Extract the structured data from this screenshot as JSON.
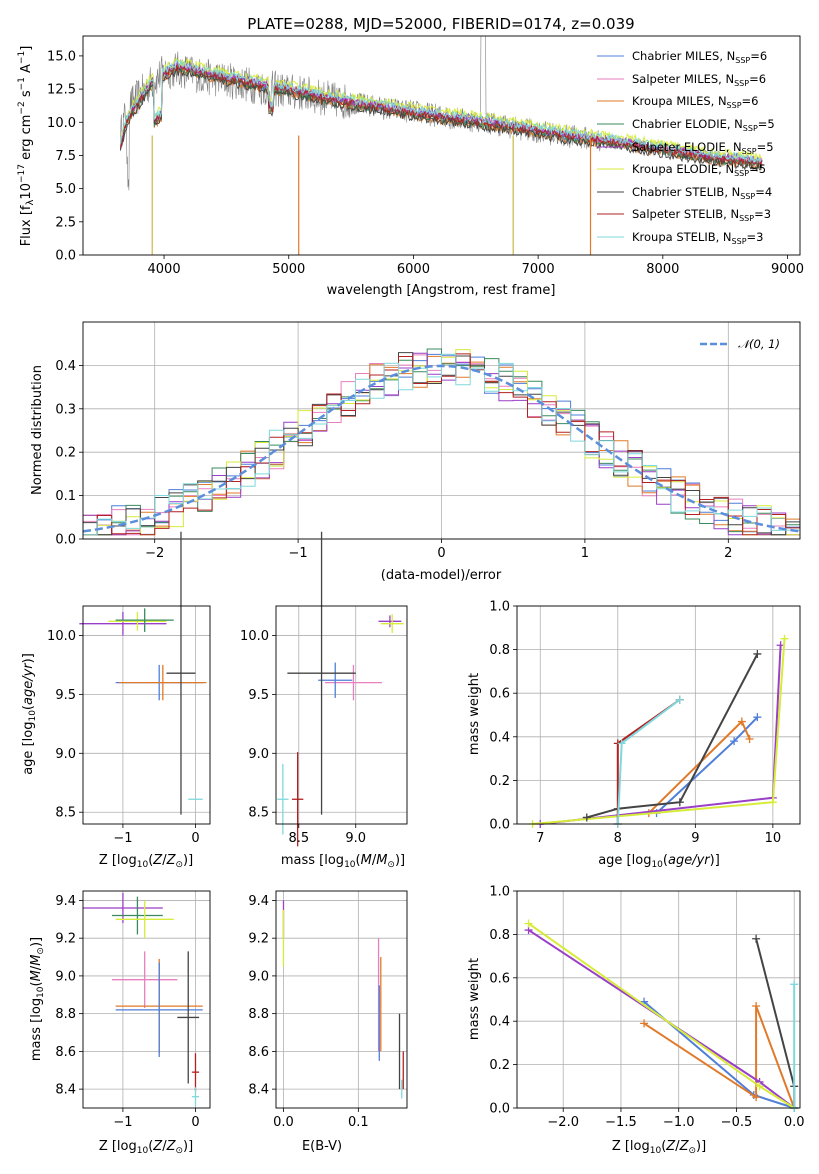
{
  "chart_data": [
    {
      "id": "spectrum",
      "type": "line",
      "title": "PLATE=0288, MJD=52000, FIBERID=0174, z=0.039",
      "xlabel": "wavelength [Angstrom, rest frame]",
      "ylabel": "Flux [f_λ 10^-17 erg cm^-2 s^-1 A^-1]",
      "xlim": [
        3350,
        9100
      ],
      "ylim": [
        0,
        16.5
      ],
      "xticks": [
        4000,
        5000,
        6000,
        7000,
        8000,
        9000
      ],
      "yticks": [
        0.0,
        2.5,
        5.0,
        7.5,
        10.0,
        12.5,
        15.0
      ],
      "grid": false,
      "legend_position": "top-right",
      "data_line": {
        "color": "#7f7f7f",
        "x": [
          3650,
          3700,
          3800,
          3900,
          4000,
          4100,
          4200,
          4300,
          4400,
          4500,
          4600,
          4700,
          4800,
          4900,
          5000,
          5100,
          5200,
          5300,
          5400,
          5500,
          5600,
          5800,
          6000,
          6200,
          6400,
          6600,
          6800,
          7000,
          7200,
          7400,
          7600,
          7800,
          8000,
          8200,
          8400,
          8600,
          8800
        ],
        "y": [
          9.0,
          11.0,
          12.0,
          13.0,
          13.8,
          14.0,
          13.8,
          13.5,
          13.3,
          13.2,
          13.0,
          12.8,
          12.6,
          12.5,
          12.3,
          12.2,
          12.0,
          11.8,
          11.6,
          11.5,
          11.3,
          11.0,
          10.8,
          10.5,
          10.2,
          10.0,
          9.6,
          9.3,
          9.0,
          8.8,
          8.5,
          8.2,
          8.0,
          7.7,
          7.4,
          7.2,
          7.0
        ]
      },
      "models_x": [
        3650,
        3700,
        3800,
        3900,
        4000,
        4100,
        4200,
        4300,
        4400,
        4500,
        4600,
        4700,
        4800,
        4900,
        5000,
        5100,
        5200,
        5300,
        5400,
        5500,
        5600,
        5800,
        6000,
        6200,
        6400,
        6600,
        6800,
        7000,
        7200,
        7400,
        7600,
        7800,
        8000,
        8200,
        8400,
        8600,
        8800
      ],
      "models_y": [
        8.0,
        10.0,
        11.5,
        12.8,
        13.5,
        14.0,
        13.9,
        13.6,
        13.4,
        13.2,
        13.0,
        12.8,
        12.6,
        12.4,
        12.3,
        12.1,
        11.9,
        11.7,
        11.5,
        11.3,
        11.2,
        10.9,
        10.6,
        10.3,
        10.1,
        9.8,
        9.5,
        9.2,
        8.9,
        8.6,
        8.4,
        8.1,
        7.8,
        7.5,
        7.2,
        7.0,
        6.8
      ],
      "series": [
        {
          "name": "Chabrier MILES, N_SSP=6",
          "color": "#4f7fd8",
          "offset": 0.1
        },
        {
          "name": "Salpeter MILES, N_SSP=6",
          "color": "#e87fbf",
          "offset": 0.2
        },
        {
          "name": "Kroupa MILES, N_SSP=6",
          "color": "#e07a2a",
          "offset": -0.1
        },
        {
          "name": "Chabrier ELODIE, N_SSP=5",
          "color": "#3a8a5f",
          "offset": 0.0
        },
        {
          "name": "Salpeter ELODIE, N_SSP=5",
          "color": "#9a3fc7",
          "offset": 0.3
        },
        {
          "name": "Kroupa ELODIE, N_SSP=5",
          "color": "#d7ec3a",
          "offset": 0.6
        },
        {
          "name": "Chabrier STELIB, N_SSP=4",
          "color": "#444444",
          "offset": -0.2
        },
        {
          "name": "Salpeter STELIB, N_SSP=3",
          "color": "#b32020",
          "offset": 0.15
        },
        {
          "name": "Kroupa STELIB, N_SSP=3",
          "color": "#7fd9dc",
          "offset": 0.4
        }
      ],
      "line_dips": [
        {
          "x": 3905,
          "color": "#c8b84a"
        },
        {
          "x": 5080,
          "color": "#e07a2a"
        },
        {
          "x": 6800,
          "color": "#c8b84a"
        },
        {
          "x": 7420,
          "color": "#e07a2a"
        }
      ]
    },
    {
      "id": "residuals",
      "type": "line",
      "xlabel": "(data-model)/error",
      "ylabel": "Normed distribution",
      "xlim": [
        -2.5,
        2.5
      ],
      "ylim": [
        0,
        0.5
      ],
      "xticks": [
        -2,
        -1,
        0,
        1,
        2
      ],
      "yticks": [
        0.0,
        0.1,
        0.2,
        0.3,
        0.4
      ],
      "grid": true,
      "legend_position": "top-right",
      "gaussian": {
        "name": "N(0,1)",
        "color": "#5b8fdc"
      },
      "series_colors": [
        "#4f7fd8",
        "#e87fbf",
        "#e07a2a",
        "#3a8a5f",
        "#9a3fc7",
        "#d7ec3a",
        "#444444",
        "#b32020",
        "#7fd9dc"
      ]
    },
    {
      "id": "age-vs-z",
      "type": "scatter",
      "xlabel": "Z [log10(Z/Z⊙)]",
      "ylabel": "age [log10(age/yr)]",
      "xlim": [
        -1.55,
        0.2
      ],
      "ylim": [
        8.4,
        10.25
      ],
      "xticks": [
        -1,
        0
      ],
      "yticks": [
        8.5,
        9.0,
        9.5,
        10.0
      ],
      "grid": true,
      "points": [
        {
          "x": -1.0,
          "y": 10.1,
          "xerr": 0.6,
          "yerr": 0.1,
          "color": "#9a3fc7"
        },
        {
          "x": -0.8,
          "y": 10.12,
          "xerr": 0.4,
          "yerr": 0.08,
          "color": "#d7ec3a"
        },
        {
          "x": -0.7,
          "y": 10.13,
          "xerr": 0.4,
          "yerr": 0.1,
          "color": "#3a8a5f"
        },
        {
          "x": -0.5,
          "y": 9.6,
          "xerr": 0.6,
          "yerr": 0.15,
          "color": "#4f7fd8"
        },
        {
          "x": -0.45,
          "y": 9.6,
          "xerr": 0.6,
          "yerr": 0.15,
          "color": "#e07a2a"
        },
        {
          "x": -0.2,
          "y": 9.68,
          "xerr": 0.2,
          "yerr": 1.2,
          "color": "#444444"
        },
        {
          "x": 0.0,
          "y": 8.61,
          "xerr": 0.1,
          "yerr": 0.0,
          "color": "#7fd9dc"
        }
      ]
    },
    {
      "id": "age-vs-mass",
      "type": "scatter",
      "xlabel": "mass [log10(M/M⊙)]",
      "ylabel": "",
      "xlim": [
        8.3,
        9.45
      ],
      "ylim": [
        8.4,
        10.25
      ],
      "xticks": [
        8.5,
        9.0
      ],
      "yticks": [
        8.5,
        9.0,
        9.5,
        10.0
      ],
      "grid": true,
      "points": [
        {
          "x": 9.3,
          "y": 10.12,
          "xerr": 0.1,
          "yerr": 0.05,
          "color": "#9a3fc7"
        },
        {
          "x": 9.32,
          "y": 10.1,
          "xerr": 0.1,
          "yerr": 0.08,
          "color": "#d7ec3a"
        },
        {
          "x": 8.98,
          "y": 9.6,
          "xerr": 0.25,
          "yerr": 0.15,
          "color": "#e87fbf"
        },
        {
          "x": 8.82,
          "y": 9.62,
          "xerr": 0.15,
          "yerr": 0.15,
          "color": "#4f7fd8"
        },
        {
          "x": 8.7,
          "y": 9.68,
          "xerr": 0.3,
          "yerr": 1.2,
          "color": "#444444"
        },
        {
          "x": 8.49,
          "y": 8.61,
          "xerr": 0.05,
          "yerr": 0.4,
          "color": "#b32020"
        },
        {
          "x": 8.36,
          "y": 8.61,
          "xerr": 0.05,
          "yerr": 0.3,
          "color": "#7fd9dc"
        }
      ]
    },
    {
      "id": "mass-weight-vs-age",
      "type": "line",
      "xlabel": "age [log10(age/yr)]",
      "ylabel": "mass weight",
      "xlim": [
        6.7,
        10.35
      ],
      "ylim": [
        0,
        1.0
      ],
      "xticks": [
        7,
        8,
        9,
        10
      ],
      "yticks": [
        0.0,
        0.2,
        0.4,
        0.6,
        0.8,
        1.0
      ],
      "grid": true,
      "series": [
        {
          "color": "#4f7fd8",
          "x": [
            8.5,
            9.5,
            9.8
          ],
          "y": [
            0.05,
            0.38,
            0.49
          ]
        },
        {
          "color": "#e07a2a",
          "x": [
            8.4,
            9.6,
            9.7
          ],
          "y": [
            0.05,
            0.47,
            0.39
          ]
        },
        {
          "color": "#9a3fc7",
          "x": [
            7.0,
            10.0,
            10.1
          ],
          "y": [
            0.0,
            0.12,
            0.82
          ]
        },
        {
          "color": "#d7ec3a",
          "x": [
            6.9,
            10.0,
            10.15
          ],
          "y": [
            0.0,
            0.1,
            0.85
          ]
        },
        {
          "color": "#444444",
          "x": [
            7.6,
            8.0,
            8.8,
            9.8
          ],
          "y": [
            0.03,
            0.07,
            0.1,
            0.78
          ]
        },
        {
          "color": "#b32020",
          "x": [
            8.0,
            8.0,
            8.8
          ],
          "y": [
            0.0,
            0.37,
            0.57
          ]
        },
        {
          "color": "#7fd9dc",
          "x": [
            8.0,
            8.05,
            8.8
          ],
          "y": [
            0.0,
            0.37,
            0.57
          ]
        }
      ]
    },
    {
      "id": "mass-vs-z",
      "type": "scatter",
      "xlabel": "Z [log10(Z/Z⊙)]",
      "ylabel": "mass [log10(M/M⊙)]",
      "xlim": [
        -1.55,
        0.2
      ],
      "ylim": [
        8.3,
        9.45
      ],
      "xticks": [
        -1,
        0
      ],
      "yticks": [
        8.4,
        8.6,
        8.8,
        9.0,
        9.2,
        9.4
      ],
      "grid": true,
      "points": [
        {
          "x": -1.0,
          "y": 9.36,
          "xerr": 0.55,
          "yerr": 0.08,
          "color": "#9a3fc7"
        },
        {
          "x": -0.8,
          "y": 9.32,
          "xerr": 0.35,
          "yerr": 0.1,
          "color": "#3a8a5f"
        },
        {
          "x": -0.7,
          "y": 9.3,
          "xerr": 0.4,
          "yerr": 0.1,
          "color": "#d7ec3a"
        },
        {
          "x": -0.7,
          "y": 8.98,
          "xerr": 0.45,
          "yerr": 0.15,
          "color": "#e87fbf"
        },
        {
          "x": -0.5,
          "y": 8.84,
          "xerr": 0.6,
          "yerr": 0.25,
          "color": "#e07a2a"
        },
        {
          "x": -0.5,
          "y": 8.82,
          "xerr": 0.6,
          "yerr": 0.25,
          "color": "#4f7fd8"
        },
        {
          "x": -0.1,
          "y": 8.78,
          "xerr": 0.15,
          "yerr": 0.35,
          "color": "#444444"
        },
        {
          "x": 0.0,
          "y": 8.49,
          "xerr": 0.05,
          "yerr": 0.1,
          "color": "#b32020"
        },
        {
          "x": 0.0,
          "y": 8.36,
          "xerr": 0.05,
          "yerr": 0.05,
          "color": "#7fd9dc"
        }
      ]
    },
    {
      "id": "mass-vs-ebv",
      "type": "scatter",
      "xlabel": "E(B-V)",
      "ylabel": "",
      "xlim": [
        -0.01,
        0.165
      ],
      "ylim": [
        8.3,
        9.45
      ],
      "xticks": [
        0.0,
        0.1
      ],
      "yticks": [
        8.4,
        8.6,
        8.8,
        9.0,
        9.2,
        9.4
      ],
      "grid": true,
      "points": [
        {
          "x": 0.0,
          "y": 9.3,
          "yerr": 0.1,
          "color": "#9a3fc7"
        },
        {
          "x": 0.0,
          "y": 9.2,
          "yerr": 0.15,
          "color": "#d7ec3a"
        },
        {
          "x": 0.127,
          "y": 8.9,
          "yerr": 0.3,
          "color": "#e87fbf"
        },
        {
          "x": 0.13,
          "y": 8.85,
          "yerr": 0.25,
          "color": "#e07a2a"
        },
        {
          "x": 0.128,
          "y": 8.75,
          "yerr": 0.2,
          "color": "#4f7fd8"
        },
        {
          "x": 0.155,
          "y": 8.6,
          "yerr": 0.2,
          "color": "#444444"
        },
        {
          "x": 0.16,
          "y": 8.5,
          "yerr": 0.1,
          "color": "#b32020"
        },
        {
          "x": 0.158,
          "y": 8.4,
          "yerr": 0.05,
          "color": "#7fd9dc"
        }
      ]
    },
    {
      "id": "mass-weight-vs-z",
      "type": "line",
      "xlabel": "Z [log10(Z/Z⊙)]",
      "ylabel": "mass weight",
      "xlim": [
        -2.4,
        0.05
      ],
      "ylim": [
        0,
        1.0
      ],
      "xticks": [
        -2.0,
        -1.5,
        -1.0,
        -0.5,
        0.0
      ],
      "yticks": [
        0.0,
        0.2,
        0.4,
        0.6,
        0.8,
        1.0
      ],
      "grid": true,
      "series": [
        {
          "color": "#4f7fd8",
          "x": [
            -1.3,
            -0.35,
            0.0
          ],
          "y": [
            0.49,
            0.06,
            0.0
          ]
        },
        {
          "color": "#e07a2a",
          "x": [
            -1.3,
            -0.33,
            -0.33,
            0.0
          ],
          "y": [
            0.39,
            0.05,
            0.47,
            0.0
          ]
        },
        {
          "color": "#9a3fc7",
          "x": [
            -2.3,
            -0.3,
            0.0
          ],
          "y": [
            0.82,
            0.12,
            0.0
          ]
        },
        {
          "color": "#d7ec3a",
          "x": [
            -2.3,
            -0.3,
            0.0
          ],
          "y": [
            0.85,
            0.1,
            0.0
          ]
        },
        {
          "color": "#444444",
          "x": [
            -0.33,
            0.0,
            0.0
          ],
          "y": [
            0.78,
            0.1,
            0.0
          ]
        },
        {
          "color": "#7fd9dc",
          "x": [
            0.0,
            0.0
          ],
          "y": [
            0.57,
            0.0
          ]
        }
      ]
    }
  ]
}
